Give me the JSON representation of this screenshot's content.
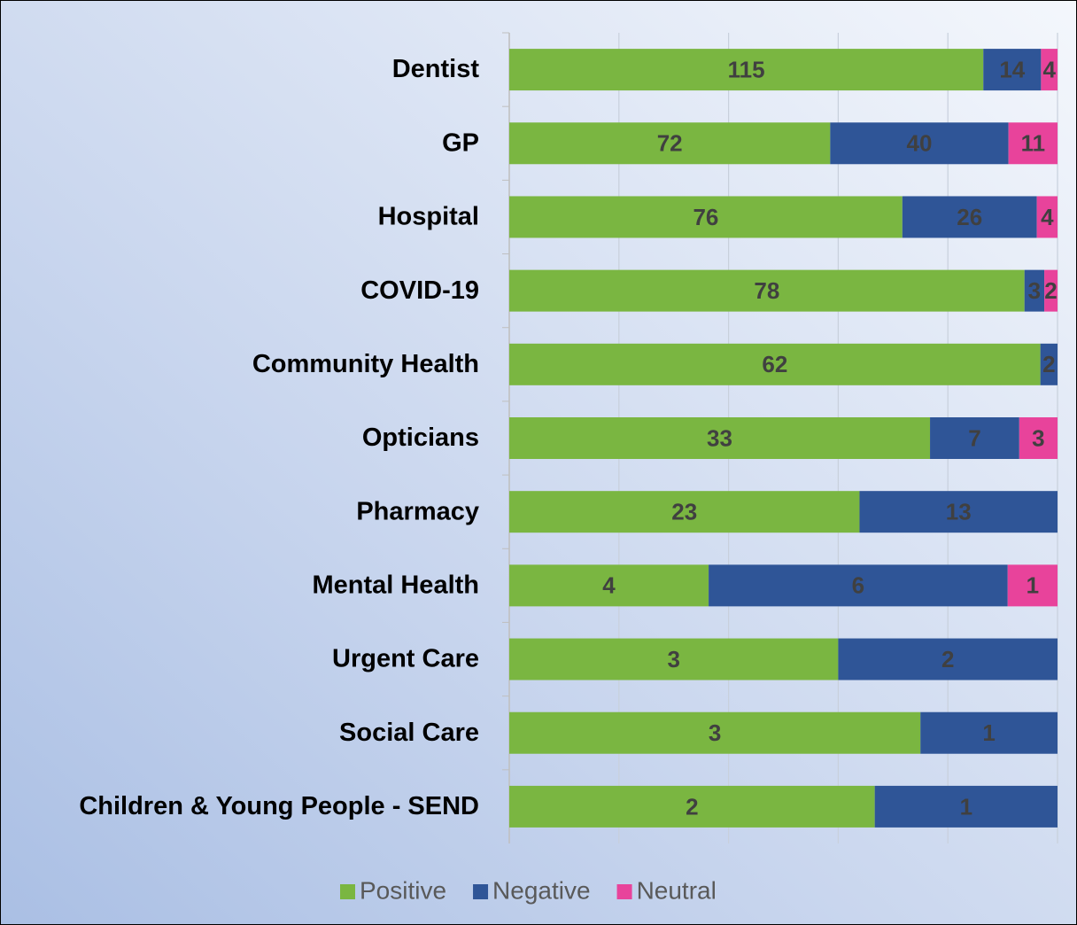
{
  "chart_data": {
    "type": "bar",
    "orientation": "horizontal",
    "stacked": "percent",
    "categories": [
      "Dentist",
      "GP",
      "Hospital",
      "COVID-19",
      "Community Health",
      "Opticians",
      "Pharmacy",
      "Mental Health",
      "Urgent Care",
      "Social Care",
      "Children & Young People - SEND"
    ],
    "series": [
      {
        "name": "Positive",
        "color": "#7ab641",
        "values": [
          115,
          72,
          76,
          78,
          62,
          33,
          23,
          4,
          3,
          3,
          2
        ]
      },
      {
        "name": "Negative",
        "color": "#2f5597",
        "values": [
          14,
          40,
          26,
          3,
          2,
          7,
          13,
          6,
          2,
          1,
          1
        ]
      },
      {
        "name": "Neutral",
        "color": "#e8439b",
        "values": [
          4,
          11,
          4,
          2,
          null,
          3,
          null,
          1,
          null,
          null,
          null
        ]
      }
    ],
    "xlim": [
      0,
      100
    ],
    "xticks": [
      0,
      20,
      40,
      60,
      80,
      100
    ],
    "grid": true,
    "legend": "bottom"
  }
}
